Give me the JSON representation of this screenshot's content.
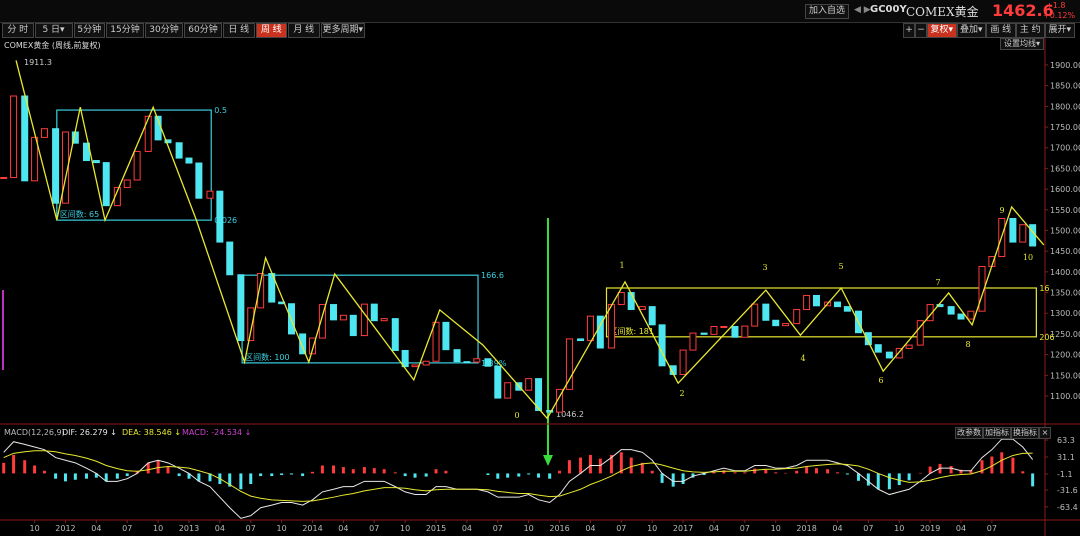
{
  "header": {
    "add_button": "加入自选",
    "nav": "◀ ▶",
    "code": "GC00Y",
    "name": "COMEX黄金",
    "price": "1462.6",
    "change": "+1.8",
    "change_pct": "+0.12%"
  },
  "toolbar": {
    "periods": [
      "分 时",
      "5 日▾",
      "5分钟",
      "15分钟",
      "30分钟",
      "60分钟",
      "日 线",
      "周 线",
      "月 线",
      "更多周期▾"
    ],
    "active_period": "周 线",
    "tools": [
      "+",
      "−",
      "复权▾",
      "叠加▾",
      "画 线",
      "主 约",
      "展开▾"
    ],
    "active_tool": "复权▾",
    "ma_setting": "设置均线▾",
    "indicator_buttons": [
      "改参数",
      "加指标",
      "换指标",
      "×"
    ]
  },
  "chart_data": [
    {
      "type": "candlestick",
      "title": "COMEX黄金 (周线,前复权)",
      "up_color": "#ff3b3b",
      "down_color": "#4ee6f0",
      "x": [
        2011.5,
        2011.58,
        2011.67,
        2011.75,
        2011.83,
        2011.92,
        2012,
        2012.08,
        2012.17,
        2012.25,
        2012.33,
        2012.42,
        2012.5,
        2012.58,
        2012.67,
        2012.75,
        2012.83,
        2012.92,
        2013,
        2013.08,
        2013.17,
        2013.25,
        2013.33,
        2013.42,
        2013.5,
        2013.58,
        2013.67,
        2013.75,
        2013.83,
        2013.92,
        2014,
        2014.08,
        2014.17,
        2014.25,
        2014.33,
        2014.42,
        2014.5,
        2014.58,
        2014.67,
        2014.75,
        2014.83,
        2014.92,
        2015,
        2015.08,
        2015.17,
        2015.25,
        2015.33,
        2015.42,
        2015.5,
        2015.58,
        2015.67,
        2015.75,
        2015.83,
        2015.92,
        2016,
        2016.08,
        2016.17,
        2016.25,
        2016.33,
        2016.42,
        2016.5,
        2016.58,
        2016.67,
        2016.75,
        2016.83,
        2016.92,
        2017,
        2017.08,
        2017.17,
        2017.25,
        2017.33,
        2017.42,
        2017.5,
        2017.58,
        2017.67,
        2017.75,
        2017.83,
        2017.92,
        2018,
        2018.08,
        2018.17,
        2018.25,
        2018.33,
        2018.42,
        2018.5,
        2018.58,
        2018.67,
        2018.75,
        2018.83,
        2018.92,
        2019,
        2019.08,
        2019.17,
        2019.25,
        2019.33,
        2019.42,
        2019.5,
        2019.58,
        2019.67,
        2019.75,
        2019.83
      ],
      "close": [
        1628,
        1825,
        1620,
        1725,
        1746,
        1566,
        1738,
        1711,
        1669,
        1664,
        1560,
        1604,
        1622,
        1691,
        1776,
        1719,
        1712,
        1675,
        1663,
        1578,
        1595,
        1472,
        1393,
        1234,
        1313,
        1396,
        1327,
        1323,
        1250,
        1202,
        1240,
        1321,
        1284,
        1295,
        1246,
        1322,
        1282,
        1287,
        1210,
        1171,
        1175,
        1184,
        1278,
        1212,
        1183,
        1182,
        1190,
        1172,
        1095,
        1132,
        1114,
        1142,
        1065,
        1061,
        1116,
        1238,
        1234,
        1293,
        1216,
        1321,
        1350,
        1309,
        1316,
        1272,
        1173,
        1152,
        1211,
        1252,
        1249,
        1268,
        1268,
        1242,
        1269,
        1322,
        1283,
        1270,
        1275,
        1309,
        1343,
        1318,
        1327,
        1316,
        1305,
        1253,
        1224,
        1206,
        1192,
        1215,
        1223,
        1282,
        1321,
        1316,
        1298,
        1286,
        1305,
        1413,
        1437,
        1529,
        1472,
        1514,
        1462.6
      ],
      "xlim": [
        2011.47,
        2019.93
      ],
      "ylim": [
        1042,
        1941
      ],
      "xticks": [
        {
          "value": 2011.75,
          "label": "10"
        },
        2012,
        {
          "value": 2012.25,
          "label": "04"
        },
        {
          "value": 2012.5,
          "label": "07"
        },
        {
          "value": 2012.75,
          "label": "10"
        },
        2013,
        {
          "value": 2013.25,
          "label": "04"
        },
        {
          "value": 2013.5,
          "label": "07"
        },
        {
          "value": 2013.75,
          "label": "10"
        },
        2014,
        {
          "value": 2014.25,
          "label": "04"
        },
        {
          "value": 2014.5,
          "label": "07"
        },
        {
          "value": 2014.75,
          "label": "10"
        },
        2015,
        {
          "value": 2015.25,
          "label": "04"
        },
        {
          "value": 2015.5,
          "label": "07"
        },
        {
          "value": 2015.75,
          "label": "10"
        },
        2016,
        {
          "value": 2016.25,
          "label": "04"
        },
        {
          "value": 2016.5,
          "label": "07"
        },
        {
          "value": 2016.75,
          "label": "10"
        },
        2017,
        {
          "value": 2017.25,
          "label": "04"
        },
        {
          "value": 2017.5,
          "label": "07"
        },
        {
          "value": 2017.75,
          "label": "10"
        },
        2018,
        {
          "value": 2018.25,
          "label": "04"
        },
        {
          "value": 2018.5,
          "label": "07"
        },
        {
          "value": 2018.75,
          "label": "10"
        },
        2019,
        {
          "value": 2019.25,
          "label": "04"
        },
        {
          "value": 2019.5,
          "label": "07"
        }
      ],
      "yticks": [
        {
          "value": 1100,
          "label": "1100.00"
        },
        {
          "value": 1150,
          "label": "1150.00"
        },
        {
          "value": 1200,
          "label": "1200.00"
        },
        {
          "value": 1250,
          "label": "1250.00"
        },
        {
          "value": 1300,
          "label": "1300.00"
        },
        {
          "value": 1350,
          "label": "1350.00"
        },
        {
          "value": 1400,
          "label": "1400.00"
        },
        {
          "value": 1450,
          "label": "1450.00"
        },
        {
          "value": 1500,
          "label": "1500.00"
        },
        {
          "value": 1550,
          "label": "1550.00"
        },
        {
          "value": 1600,
          "label": "1600.00"
        },
        {
          "value": 1650,
          "label": "1650.00"
        },
        {
          "value": 1700,
          "label": "1700.00"
        },
        {
          "value": 1750,
          "label": "1750.00"
        },
        {
          "value": 1800,
          "label": "1800.00"
        },
        {
          "value": 1850,
          "label": "1850.00"
        },
        {
          "value": 1900,
          "label": "1900.00"
        }
      ],
      "zigzag": {
        "color": "#e8e830",
        "x": [
          2011.6,
          2011.93,
          2012.12,
          2012.32,
          2012.71,
          2013.06,
          2013.45,
          2013.62,
          2013.97,
          2014.18,
          2014.82,
          2015.03,
          2015.38,
          2015.9,
          2016.53,
          2016.96,
          2017.67,
          2017.95,
          2018.28,
          2018.62,
          2019.15,
          2019.34,
          2019.66,
          2019.92
        ],
        "y": [
          1911,
          1525,
          1798,
          1525,
          1798,
          1525,
          1182,
          1434,
          1182,
          1395,
          1139,
          1308,
          1223,
          1046,
          1376,
          1131,
          1356,
          1247,
          1361,
          1160,
          1349,
          1272,
          1557,
          1465
        ]
      },
      "boxes": [
        {
          "color": "#3ad0e0",
          "x": [
            2011.93,
            2013.18
          ],
          "y": [
            1525,
            1791
          ],
          "label": "区间数: 65",
          "top_label": "0.5",
          "bottom_label": "0.026"
        },
        {
          "color": "#3ad0e0",
          "x": [
            2013.43,
            2015.34
          ],
          "y": [
            1180,
            1392
          ],
          "label": "区间数: 100",
          "top_label": "166.6",
          "bottom_label": "1.39%"
        },
        {
          "color": "#e8e830",
          "x": [
            2016.38,
            2019.86
          ],
          "y": [
            1243,
            1361
          ],
          "label": "区间数: 181",
          "top_label": "16",
          "bottom_label": "206"
        }
      ],
      "high_label": 1911.3,
      "low_label": 1046.2,
      "wave_labels": [
        "0",
        "1",
        "2",
        "3",
        "4",
        "5",
        "6",
        "7",
        "8",
        "9",
        "10"
      ]
    },
    {
      "type": "macd",
      "title": "MACD(12,26,9)",
      "readout": [
        "DIF: 26.279 ↓",
        "DEA: 38.546 ↓",
        "MACD: -24.534 ↓"
      ],
      "ylim": [
        -88.2,
        87.9
      ],
      "yticks": [
        63.3,
        31.1,
        -1.1,
        -31.6,
        -63.4
      ],
      "series": [
        {
          "name": "DIF",
          "color": "#e8e8e8",
          "values": [
            40,
            60,
            55,
            50,
            45,
            30,
            25,
            20,
            10,
            0,
            -15,
            -15,
            -10,
            0,
            20,
            25,
            20,
            10,
            0,
            -15,
            -25,
            -45,
            -65,
            -85,
            -80,
            -65,
            -60,
            -55,
            -55,
            -60,
            -50,
            -35,
            -30,
            -25,
            -25,
            -15,
            -15,
            -15,
            -25,
            -35,
            -40,
            -40,
            -25,
            -25,
            -30,
            -30,
            -30,
            -35,
            -45,
            -45,
            -45,
            -40,
            -50,
            -55,
            -40,
            -15,
            0,
            15,
            15,
            30,
            45,
            45,
            40,
            25,
            0,
            -15,
            -15,
            -5,
            0,
            5,
            10,
            5,
            5,
            15,
            15,
            10,
            10,
            15,
            25,
            25,
            25,
            20,
            15,
            0,
            -15,
            -30,
            -40,
            -35,
            -30,
            -15,
            0,
            10,
            10,
            5,
            5,
            30,
            45,
            65,
            65,
            50,
            26.279
          ]
        },
        {
          "name": "DEA",
          "color": "#e8e830",
          "values": [
            30,
            38,
            41,
            43,
            43,
            41,
            37,
            34,
            29,
            23,
            15,
            9,
            5,
            4,
            7,
            11,
            13,
            12,
            10,
            5,
            -1,
            -10,
            -21,
            -34,
            -43,
            -47,
            -50,
            -51,
            -52,
            -53,
            -52,
            -49,
            -45,
            -41,
            -38,
            -33,
            -30,
            -27,
            -27,
            -28,
            -31,
            -33,
            -31,
            -30,
            -30,
            -30,
            -30,
            -31,
            -34,
            -36,
            -38,
            -38,
            -41,
            -44,
            -43,
            -37,
            -30,
            -21,
            -14,
            -5,
            5,
            13,
            18,
            20,
            16,
            10,
            5,
            3,
            2,
            3,
            4,
            4,
            4,
            6,
            8,
            8,
            9,
            10,
            13,
            15,
            17,
            18,
            17,
            14,
            8,
            0,
            -8,
            -13,
            -17,
            -16,
            -13,
            -8,
            -4,
            -2,
            -1,
            5,
            14,
            25,
            34,
            38,
            38.546
          ]
        }
      ],
      "macd": {
        "name": "MACD",
        "up_color": "#ff3b3b",
        "down_color": "#4ee6f0",
        "values": [
          20,
          35,
          25,
          15,
          5,
          -10,
          -15,
          -12,
          -10,
          -8,
          -15,
          -10,
          -5,
          5,
          20,
          25,
          12,
          -5,
          -10,
          -15,
          -15,
          -20,
          -25,
          -30,
          -20,
          -5,
          -5,
          -3,
          -2,
          -5,
          3,
          15,
          15,
          12,
          8,
          12,
          10,
          8,
          2,
          -5,
          -8,
          -6,
          8,
          5,
          0,
          0,
          0,
          -3,
          -10,
          -8,
          -6,
          -2,
          -8,
          -10,
          5,
          25,
          30,
          35,
          28,
          35,
          40,
          30,
          20,
          5,
          -18,
          -25,
          -20,
          -8,
          -3,
          2,
          6,
          2,
          2,
          9,
          7,
          2,
          1,
          5,
          12,
          10,
          8,
          2,
          -2,
          -14,
          -23,
          -30,
          -30,
          -22,
          -13,
          1,
          13,
          18,
          14,
          7,
          6,
          25,
          32,
          40,
          30,
          4,
          -24.534
        ]
      }
    }
  ]
}
